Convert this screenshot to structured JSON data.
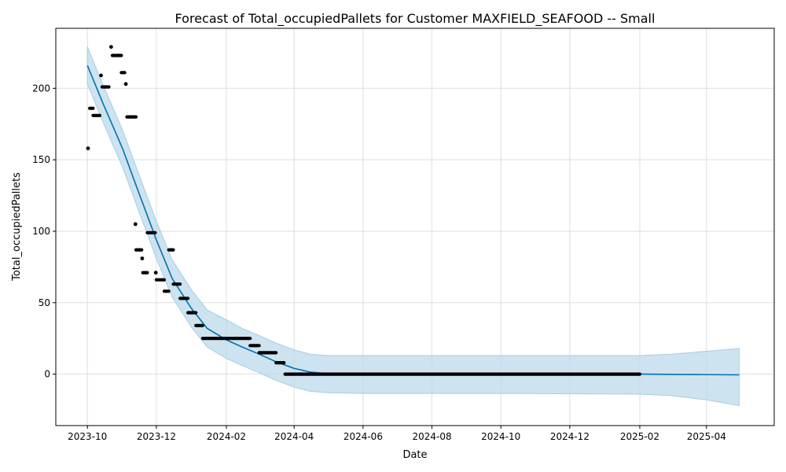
{
  "chart_data": {
    "type": "line",
    "title": "Forecast of Total_occupiedPallets for Customer MAXFIELD_SEAFOOD -- Small",
    "xlabel": "Date",
    "ylabel": "Total_occupiedPallets",
    "x_axis": {
      "kind": "date",
      "range": [
        "2023-09-03",
        "2025-05-31"
      ],
      "tick_labels": [
        "2023-10",
        "2023-12",
        "2024-02",
        "2024-04",
        "2024-06",
        "2024-08",
        "2024-10",
        "2024-12",
        "2025-02",
        "2025-04"
      ],
      "tick_dates": [
        "2023-10-01",
        "2023-12-01",
        "2024-02-01",
        "2024-04-01",
        "2024-06-01",
        "2024-08-01",
        "2024-10-01",
        "2024-12-01",
        "2025-02-01",
        "2025-04-01"
      ]
    },
    "y_axis": {
      "range": [
        -36,
        242
      ],
      "ticks": [
        0,
        50,
        100,
        150,
        200
      ]
    },
    "grid": true,
    "colors": {
      "forecast_line": "#0072b2",
      "uncertainty_band": "#bcd9ea",
      "uncertainty_edge": "#a6cde3",
      "observations": "#000000",
      "grid": "#dedede"
    },
    "series": [
      {
        "kind": "observed_points",
        "segments": [
          {
            "start": "2023-10-01",
            "end": "2023-10-02",
            "value": 158
          },
          {
            "start": "2023-10-03",
            "end": "2023-10-06",
            "value": 186
          },
          {
            "start": "2023-10-06",
            "end": "2023-10-12",
            "value": 181
          },
          {
            "start": "2023-10-12",
            "end": "2023-10-14",
            "value": 209
          },
          {
            "start": "2023-10-14",
            "end": "2023-10-20",
            "value": 201
          },
          {
            "start": "2023-10-21",
            "end": "2023-10-23",
            "value": 229
          },
          {
            "start": "2023-10-23",
            "end": "2023-10-31",
            "value": 223
          },
          {
            "start": "2023-10-31",
            "end": "2023-11-03",
            "value": 211
          },
          {
            "start": "2023-11-03",
            "end": "2023-11-05",
            "value": 203
          },
          {
            "start": "2023-11-05",
            "end": "2023-11-13",
            "value": 180
          },
          {
            "start": "2023-11-12",
            "end": "2023-11-13",
            "value": 105
          },
          {
            "start": "2023-11-13",
            "end": "2023-11-18",
            "value": 87
          },
          {
            "start": "2023-11-18",
            "end": "2023-11-19",
            "value": 81
          },
          {
            "start": "2023-11-19",
            "end": "2023-11-23",
            "value": 71
          },
          {
            "start": "2023-11-23",
            "end": "2023-11-30",
            "value": 99
          },
          {
            "start": "2023-11-30",
            "end": "2023-12-01",
            "value": 71
          },
          {
            "start": "2023-12-01",
            "end": "2023-12-08",
            "value": 66
          },
          {
            "start": "2023-12-08",
            "end": "2023-12-12",
            "value": 58
          },
          {
            "start": "2023-12-12",
            "end": "2023-12-16",
            "value": 87
          },
          {
            "start": "2023-12-16",
            "end": "2023-12-22",
            "value": 63
          },
          {
            "start": "2023-12-22",
            "end": "2023-12-29",
            "value": 53
          },
          {
            "start": "2023-12-29",
            "end": "2024-01-05",
            "value": 43
          },
          {
            "start": "2024-01-05",
            "end": "2024-01-11",
            "value": 34
          },
          {
            "start": "2024-01-11",
            "end": "2024-02-22",
            "value": 25
          },
          {
            "start": "2024-02-22",
            "end": "2024-03-01",
            "value": 20
          },
          {
            "start": "2024-03-01",
            "end": "2024-03-16",
            "value": 15
          },
          {
            "start": "2024-03-16",
            "end": "2024-03-23",
            "value": 8
          },
          {
            "start": "2024-03-24",
            "end": "2025-02-01",
            "value": 0
          }
        ]
      },
      {
        "kind": "forecast",
        "points": [
          {
            "date": "2023-10-01",
            "value": 216
          },
          {
            "date": "2023-10-15",
            "value": 189
          },
          {
            "date": "2023-11-01",
            "value": 158
          },
          {
            "date": "2023-11-15",
            "value": 128
          },
          {
            "date": "2023-12-01",
            "value": 94
          },
          {
            "date": "2023-12-15",
            "value": 67
          },
          {
            "date": "2024-01-01",
            "value": 46
          },
          {
            "date": "2024-01-15",
            "value": 32
          },
          {
            "date": "2024-02-01",
            "value": 24
          },
          {
            "date": "2024-02-15",
            "value": 19
          },
          {
            "date": "2024-03-01",
            "value": 14
          },
          {
            "date": "2024-03-15",
            "value": 9
          },
          {
            "date": "2024-04-01",
            "value": 4
          },
          {
            "date": "2024-04-15",
            "value": 1.5
          },
          {
            "date": "2024-05-01",
            "value": 0.3
          },
          {
            "date": "2024-06-01",
            "value": 0
          },
          {
            "date": "2024-10-01",
            "value": 0
          },
          {
            "date": "2025-02-01",
            "value": 0
          },
          {
            "date": "2025-04-30",
            "value": -0.5
          }
        ]
      },
      {
        "kind": "uncertainty_interval",
        "points": [
          {
            "date": "2023-10-01",
            "lower": 203,
            "upper": 229
          },
          {
            "date": "2023-10-15",
            "lower": 176,
            "upper": 202
          },
          {
            "date": "2023-11-01",
            "lower": 145,
            "upper": 171
          },
          {
            "date": "2023-11-15",
            "lower": 115,
            "upper": 141
          },
          {
            "date": "2023-12-01",
            "lower": 81,
            "upper": 107
          },
          {
            "date": "2023-12-15",
            "lower": 54,
            "upper": 80
          },
          {
            "date": "2024-01-01",
            "lower": 33,
            "upper": 59
          },
          {
            "date": "2024-01-15",
            "lower": 19,
            "upper": 45
          },
          {
            "date": "2024-02-01",
            "lower": 11,
            "upper": 38
          },
          {
            "date": "2024-02-15",
            "lower": 6,
            "upper": 32
          },
          {
            "date": "2024-03-01",
            "lower": 1,
            "upper": 27
          },
          {
            "date": "2024-03-15",
            "lower": -4,
            "upper": 22
          },
          {
            "date": "2024-04-01",
            "lower": -9,
            "upper": 17
          },
          {
            "date": "2024-04-15",
            "lower": -12,
            "upper": 14
          },
          {
            "date": "2024-05-01",
            "lower": -13,
            "upper": 13
          },
          {
            "date": "2024-06-01",
            "lower": -13.5,
            "upper": 13
          },
          {
            "date": "2024-10-01",
            "lower": -13.5,
            "upper": 13
          },
          {
            "date": "2025-02-01",
            "lower": -14,
            "upper": 13
          },
          {
            "date": "2025-03-01",
            "lower": -15,
            "upper": 14
          },
          {
            "date": "2025-04-01",
            "lower": -18,
            "upper": 16
          },
          {
            "date": "2025-04-30",
            "lower": -22,
            "upper": 18
          }
        ]
      }
    ]
  }
}
